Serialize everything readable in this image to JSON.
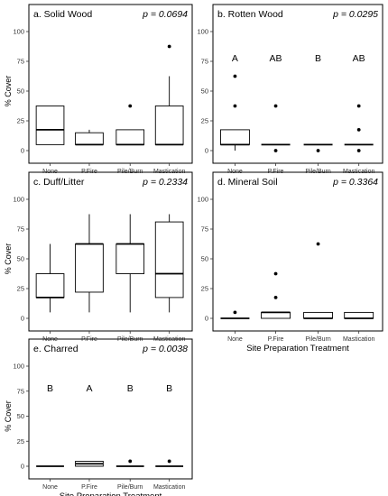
{
  "chart_data": [
    {
      "type": "boxplot",
      "title": "a. Solid Wood",
      "p_value": "p = 0.0694",
      "ylabel": "% Cover",
      "xlabel": "",
      "ylim": [
        0,
        100
      ],
      "yticks": [
        "0",
        "25",
        "50",
        "75",
        "100"
      ],
      "categories": [
        "None",
        "P.Fire",
        "Pile/Burn",
        "Mastication"
      ],
      "boxes": [
        {
          "min": 5,
          "q1": 5,
          "median": 17.5,
          "q3": 37.5,
          "max": 37.5,
          "outliers": []
        },
        {
          "min": 5,
          "q1": 5,
          "median": 5,
          "q3": 15,
          "max": 17.5,
          "outliers": []
        },
        {
          "min": 5,
          "q1": 5,
          "median": 5,
          "q3": 17.5,
          "max": 17.5,
          "outliers": [
            37.5
          ]
        },
        {
          "min": 5,
          "q1": 5,
          "median": 5,
          "q3": 37.5,
          "max": 62.5,
          "outliers": [
            87.5
          ]
        }
      ],
      "letters": []
    },
    {
      "type": "boxplot",
      "title": "b. Rotten Wood",
      "p_value": "p = 0.0295",
      "ylabel": "",
      "xlabel": "",
      "ylim": [
        0,
        100
      ],
      "yticks": [
        "0",
        "25",
        "50",
        "75",
        "100"
      ],
      "categories": [
        "None",
        "P.Fire",
        "Pile/Burn",
        "Mastication"
      ],
      "boxes": [
        {
          "min": 0,
          "q1": 5,
          "median": 5,
          "q3": 17.5,
          "max": 17.5,
          "outliers": [
            37.5,
            62.5
          ]
        },
        {
          "min": 5,
          "q1": 5,
          "median": 5,
          "q3": 5,
          "max": 5,
          "outliers": [
            0,
            37.5
          ]
        },
        {
          "min": 5,
          "q1": 5,
          "median": 5,
          "q3": 5,
          "max": 5,
          "outliers": [
            0
          ]
        },
        {
          "min": 5,
          "q1": 5,
          "median": 5,
          "q3": 5,
          "max": 5,
          "outliers": [
            0,
            17.5,
            37.5
          ]
        }
      ],
      "letters": [
        "A",
        "AB",
        "B",
        "AB"
      ]
    },
    {
      "type": "boxplot",
      "title": "c. Duff/Litter",
      "p_value": "p = 0.2334",
      "ylabel": "% Cover",
      "xlabel": "",
      "ylim": [
        0,
        100
      ],
      "yticks": [
        "0",
        "25",
        "50",
        "75",
        "100"
      ],
      "categories": [
        "None",
        "P.Fire",
        "Pile/Burn",
        "Mastication"
      ],
      "boxes": [
        {
          "min": 5,
          "q1": 17.5,
          "median": 17.5,
          "q3": 37.5,
          "max": 62.5,
          "outliers": []
        },
        {
          "min": 5,
          "q1": 22,
          "median": 62.5,
          "q3": 62.5,
          "max": 87.5,
          "outliers": []
        },
        {
          "min": 5,
          "q1": 37.5,
          "median": 62.5,
          "q3": 62.5,
          "max": 87.5,
          "outliers": []
        },
        {
          "min": 5,
          "q1": 17.5,
          "median": 37.5,
          "q3": 81,
          "max": 87.5,
          "outliers": []
        }
      ],
      "letters": []
    },
    {
      "type": "boxplot",
      "title": "d. Mineral Soil",
      "p_value": "p = 0.3364",
      "ylabel": "",
      "xlabel": "Site Preparation Treatment",
      "ylim": [
        0,
        100
      ],
      "yticks": [
        "0",
        "25",
        "50",
        "75",
        "100"
      ],
      "categories": [
        "None",
        "P.Fire",
        "Pile/Burn",
        "Mastication"
      ],
      "boxes": [
        {
          "min": 0,
          "q1": 0,
          "median": 0,
          "q3": 0,
          "max": 0,
          "outliers": [
            5
          ]
        },
        {
          "min": 0,
          "q1": 0,
          "median": 5,
          "q3": 5,
          "max": 5,
          "outliers": [
            17.5,
            37.5
          ]
        },
        {
          "min": 0,
          "q1": 0,
          "median": 0,
          "q3": 5,
          "max": 5,
          "outliers": [
            62.5
          ]
        },
        {
          "min": 0,
          "q1": 0,
          "median": 0,
          "q3": 5,
          "max": 5,
          "outliers": []
        }
      ],
      "letters": []
    },
    {
      "type": "boxplot",
      "title": "e. Charred",
      "p_value": "p = 0.0038",
      "ylabel": "% Cover",
      "xlabel": "Site Preparation Treatment",
      "ylim": [
        0,
        100
      ],
      "yticks": [
        "0",
        "25",
        "50",
        "75",
        "100"
      ],
      "categories": [
        "None",
        "P.Fire",
        "Pile/Burn",
        "Mastication"
      ],
      "boxes": [
        {
          "min": 0,
          "q1": 0,
          "median": 0,
          "q3": 0,
          "max": 0,
          "outliers": []
        },
        {
          "min": 0,
          "q1": 0,
          "median": 2.5,
          "q3": 5,
          "max": 5,
          "outliers": []
        },
        {
          "min": 0,
          "q1": 0,
          "median": 0,
          "q3": 0,
          "max": 0,
          "outliers": [
            5
          ]
        },
        {
          "min": 0,
          "q1": 0,
          "median": 0,
          "q3": 0,
          "max": 0,
          "outliers": [
            5
          ]
        }
      ],
      "letters": [
        "B",
        "A",
        "B",
        "B"
      ]
    }
  ]
}
